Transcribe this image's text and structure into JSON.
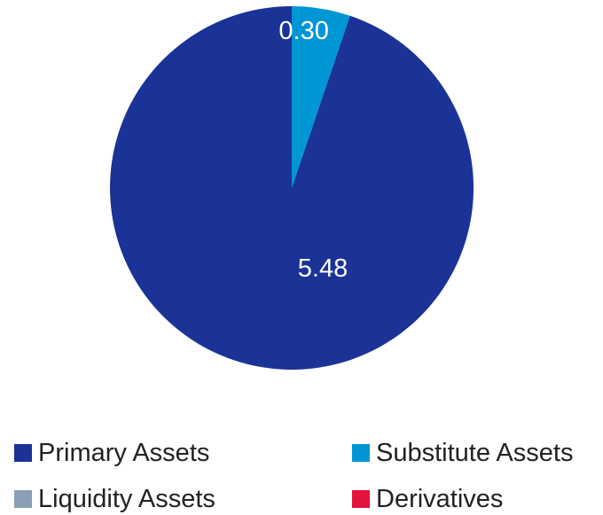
{
  "chart_data": {
    "type": "pie",
    "title": "",
    "slices": [
      {
        "name": "Primary Assets",
        "value": 5.48,
        "color": "#1b3297",
        "label": "5.48"
      },
      {
        "name": "Substitute Assets",
        "value": 0.3,
        "color": "#0096d6",
        "label": "0.30"
      },
      {
        "name": "Liquidity Assets",
        "value": 0,
        "color": "#8aa0b5",
        "label": ""
      },
      {
        "name": "Derivatives",
        "value": 0,
        "color": "#e3133d",
        "label": ""
      }
    ],
    "legend": {
      "placement": "bottom",
      "items": [
        "Primary Assets",
        "Substitute Assets",
        "Liquidity Assets",
        "Derivatives"
      ]
    }
  }
}
